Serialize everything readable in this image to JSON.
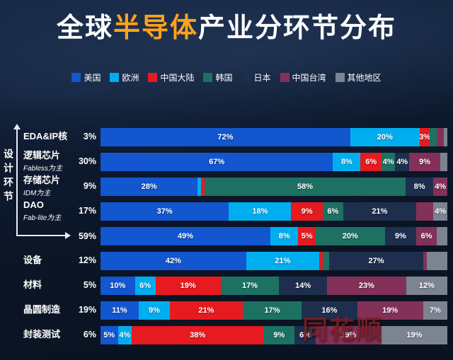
{
  "title": {
    "pre": "全球",
    "highlight": "半导体",
    "post": "产业分环节分布"
  },
  "legend": [
    {
      "key": "us",
      "label": "美国"
    },
    {
      "key": "eu",
      "label": "欧洲"
    },
    {
      "key": "cn",
      "label": "中国大陆"
    },
    {
      "key": "kr",
      "label": "韩国"
    },
    {
      "key": "jp",
      "label": "日本"
    },
    {
      "key": "tw",
      "label": "中国台湾"
    },
    {
      "key": "other",
      "label": "其他地区"
    }
  ],
  "colors": {
    "us": "#1256d0",
    "eu": "#00aeef",
    "cn": "#e71a1f",
    "kr": "#1c7163",
    "jp": "#1e2f4e",
    "tw": "#833159",
    "other": "#7c8391"
  },
  "group_label": "设计环节",
  "watermark": "同花顺",
  "chart_data": {
    "type": "bar",
    "orientation": "horizontal-stacked",
    "unit": "%",
    "title": "全球半导体产业分环节分布",
    "series_order": [
      "美国",
      "欧洲",
      "中国大陆",
      "韩国",
      "日本",
      "中国台湾",
      "其他地区"
    ],
    "rows": [
      {
        "name": "EDA&IP核",
        "sub": "",
        "share": "3%",
        "segments": [
          {
            "key": "us",
            "value": 72,
            "label": "72%"
          },
          {
            "key": "eu",
            "value": 20,
            "label": "20%"
          },
          {
            "key": "cn",
            "value": 3,
            "label": "3%"
          },
          {
            "key": "kr",
            "value": 2,
            "label": ""
          },
          {
            "key": "tw",
            "value": 2,
            "label": ""
          },
          {
            "key": "other",
            "value": 1,
            "label": ""
          }
        ]
      },
      {
        "name": "逻辑芯片",
        "sub": "Fabless为主",
        "share": "30%",
        "segments": [
          {
            "key": "us",
            "value": 67,
            "label": "67%"
          },
          {
            "key": "eu",
            "value": 8,
            "label": "8%"
          },
          {
            "key": "cn",
            "value": 6,
            "label": "6%"
          },
          {
            "key": "kr",
            "value": 4,
            "label": "4%"
          },
          {
            "key": "jp",
            "value": 4,
            "label": "4%"
          },
          {
            "key": "tw",
            "value": 9,
            "label": "9%"
          },
          {
            "key": "other",
            "value": 2,
            "label": ""
          }
        ]
      },
      {
        "name": "存储芯片",
        "sub": "IDM为主",
        "share": "9%",
        "segments": [
          {
            "key": "us",
            "value": 28,
            "label": "28%"
          },
          {
            "key": "eu",
            "value": 1,
            "label": ""
          },
          {
            "key": "cn",
            "value": 1,
            "label": ""
          },
          {
            "key": "kr",
            "value": 58,
            "label": "58%"
          },
          {
            "key": "jp",
            "value": 8,
            "label": "8%"
          },
          {
            "key": "tw",
            "value": 4,
            "label": "4%"
          }
        ]
      },
      {
        "name": "DAO",
        "sub": "Fab-lite为主",
        "share": "17%",
        "segments": [
          {
            "key": "us",
            "value": 37,
            "label": "37%"
          },
          {
            "key": "eu",
            "value": 18,
            "label": "18%"
          },
          {
            "key": "cn",
            "value": 9,
            "label": "9%"
          },
          {
            "key": "kr",
            "value": 6,
            "label": "6%"
          },
          {
            "key": "jp",
            "value": 21,
            "label": "21%"
          },
          {
            "key": "tw",
            "value": 5,
            "label": ""
          },
          {
            "key": "other",
            "value": 4,
            "label": "4%"
          }
        ]
      },
      {
        "name": "",
        "sub": "",
        "share": "59%",
        "segments": [
          {
            "key": "us",
            "value": 49,
            "label": "49%"
          },
          {
            "key": "eu",
            "value": 8,
            "label": "8%"
          },
          {
            "key": "cn",
            "value": 5,
            "label": "5%"
          },
          {
            "key": "kr",
            "value": 20,
            "label": "20%"
          },
          {
            "key": "jp",
            "value": 9,
            "label": "9%"
          },
          {
            "key": "tw",
            "value": 6,
            "label": "6%"
          },
          {
            "key": "other",
            "value": 3,
            "label": ""
          }
        ]
      },
      {
        "name": "设备",
        "sub": "",
        "share": "12%",
        "segments": [
          {
            "key": "us",
            "value": 42,
            "label": "42%"
          },
          {
            "key": "eu",
            "value": 21,
            "label": "21%"
          },
          {
            "key": "cn",
            "value": 1,
            "label": ""
          },
          {
            "key": "kr",
            "value": 2,
            "label": ""
          },
          {
            "key": "jp",
            "value": 27,
            "label": "27%"
          },
          {
            "key": "tw",
            "value": 1,
            "label": ""
          },
          {
            "key": "other",
            "value": 6,
            "label": ""
          }
        ]
      },
      {
        "name": "材料",
        "sub": "",
        "share": "5%",
        "segments": [
          {
            "key": "us",
            "value": 10,
            "label": "10%"
          },
          {
            "key": "eu",
            "value": 6,
            "label": "6%"
          },
          {
            "key": "cn",
            "value": 19,
            "label": "19%"
          },
          {
            "key": "kr",
            "value": 17,
            "label": "17%"
          },
          {
            "key": "jp",
            "value": 14,
            "label": "14%"
          },
          {
            "key": "tw",
            "value": 23,
            "label": "23%"
          },
          {
            "key": "other",
            "value": 12,
            "label": "12%"
          }
        ]
      },
      {
        "name": "晶圆制造",
        "sub": "",
        "share": "19%",
        "segments": [
          {
            "key": "us",
            "value": 11,
            "label": "11%"
          },
          {
            "key": "eu",
            "value": 9,
            "label": "9%"
          },
          {
            "key": "cn",
            "value": 21,
            "label": "21%"
          },
          {
            "key": "kr",
            "value": 17,
            "label": "17%"
          },
          {
            "key": "jp",
            "value": 16,
            "label": "16%"
          },
          {
            "key": "tw",
            "value": 19,
            "label": "19%"
          },
          {
            "key": "other",
            "value": 7,
            "label": "7%"
          }
        ]
      },
      {
        "name": "封装测试",
        "sub": "",
        "share": "6%",
        "segments": [
          {
            "key": "us",
            "value": 5,
            "label": "5%"
          },
          {
            "key": "eu",
            "value": 4,
            "label": "4%"
          },
          {
            "key": "cn",
            "value": 38,
            "label": "38%"
          },
          {
            "key": "kr",
            "value": 9,
            "label": "9%"
          },
          {
            "key": "jp",
            "value": 6,
            "label": "6%"
          },
          {
            "key": "tw",
            "value": 19,
            "label": "19%"
          },
          {
            "key": "other",
            "value": 19,
            "label": "19%"
          }
        ]
      }
    ]
  }
}
